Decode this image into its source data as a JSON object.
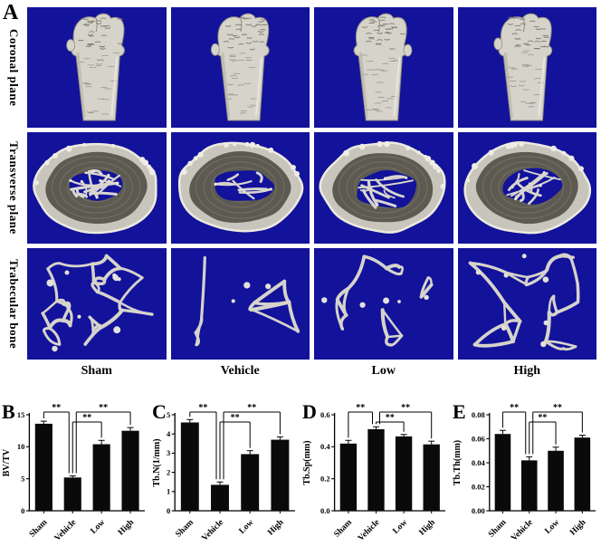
{
  "figure": {
    "panel_a": {
      "label": "A",
      "row_labels": [
        "Coronal plane",
        "Transverse plane",
        "Trabecular bone"
      ],
      "group_labels": [
        "Sham",
        "Vehicle",
        "Low",
        "High"
      ]
    },
    "colors": {
      "ct_background": "#12129b",
      "bone_light": "#d6d3cb",
      "bone_shadow": "#8f8b7e",
      "bar_color": "#0a0a0a"
    }
  },
  "chart_data": [
    {
      "panel": "B",
      "type": "bar",
      "categories": [
        "Sham",
        "Vehicle",
        "Low",
        "High"
      ],
      "values": [
        13.6,
        5.2,
        10.4,
        12.5
      ],
      "errors": [
        0.4,
        0.25,
        0.6,
        0.5
      ],
      "ylabel": "BV/TV",
      "ylim": [
        0,
        15
      ],
      "yticks": [
        "0",
        "5",
        "10",
        "15"
      ],
      "significance": [
        {
          "a": 0,
          "b": 1,
          "label": "**",
          "tier": "top"
        },
        {
          "a": 1,
          "b": 2,
          "label": "**",
          "tier": "mid"
        },
        {
          "a": 1,
          "b": 3,
          "label": "**",
          "tier": "top"
        }
      ]
    },
    {
      "panel": "C",
      "type": "bar",
      "categories": [
        "Sham",
        "Vehicle",
        "Low",
        "High"
      ],
      "values": [
        4.6,
        1.35,
        2.95,
        3.7
      ],
      "errors": [
        0.15,
        0.15,
        0.18,
        0.15
      ],
      "ylabel": "Tb.N(1/mm)",
      "ylim": [
        0,
        5
      ],
      "yticks": [
        "0",
        "1",
        "2",
        "3",
        "4",
        "5"
      ],
      "significance": [
        {
          "a": 0,
          "b": 1,
          "label": "**",
          "tier": "top"
        },
        {
          "a": 1,
          "b": 2,
          "label": "**",
          "tier": "mid"
        },
        {
          "a": 1,
          "b": 3,
          "label": "**",
          "tier": "top"
        }
      ]
    },
    {
      "panel": "D",
      "type": "bar",
      "categories": [
        "Sham",
        "Vehicle",
        "Low",
        "High"
      ],
      "values": [
        0.42,
        0.51,
        0.465,
        0.415
      ],
      "errors": [
        0.02,
        0.015,
        0.012,
        0.02
      ],
      "ylabel": "Tb.Sp(mm)",
      "ylim": [
        0,
        0.6
      ],
      "yticks": [
        "0.0",
        "0.2",
        "0.4",
        "0.6"
      ],
      "significance": [
        {
          "a": 0,
          "b": 1,
          "label": "**",
          "tier": "top"
        },
        {
          "a": 1,
          "b": 2,
          "label": "**",
          "tier": "mid"
        },
        {
          "a": 1,
          "b": 3,
          "label": "**",
          "tier": "top"
        }
      ]
    },
    {
      "panel": "E",
      "type": "bar",
      "categories": [
        "Sham",
        "Vehicle",
        "Low",
        "High"
      ],
      "values": [
        0.064,
        0.042,
        0.05,
        0.061
      ],
      "errors": [
        0.003,
        0.003,
        0.003,
        0.002
      ],
      "ylabel": "Tb.Th(mm)",
      "ylim": [
        0,
        0.08
      ],
      "yticks": [
        "0.00",
        "0.02",
        "0.04",
        "0.06",
        "0.08"
      ],
      "significance": [
        {
          "a": 0,
          "b": 1,
          "label": "**",
          "tier": "top"
        },
        {
          "a": 1,
          "b": 2,
          "label": "**",
          "tier": "mid"
        },
        {
          "a": 1,
          "b": 3,
          "label": "**",
          "tier": "top"
        }
      ]
    }
  ]
}
